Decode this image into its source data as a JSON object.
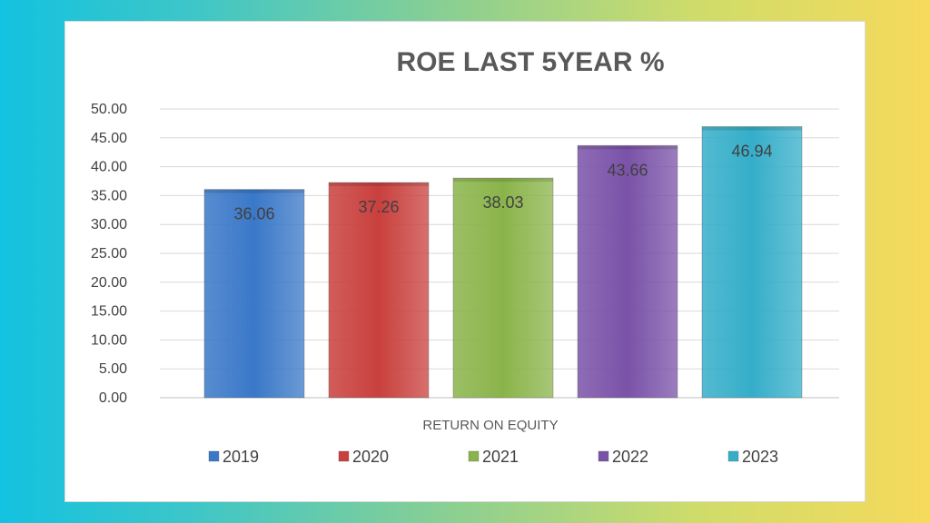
{
  "chart_data": {
    "type": "bar",
    "title": "ROE LAST 5YEAR %",
    "xlabel": "RETURN ON EQUITY",
    "ylabel": "",
    "ylim": [
      0,
      50
    ],
    "ytick_step": 5,
    "ytick_decimals": 2,
    "grid": true,
    "legend": "bottom",
    "categories": [
      "RETURN ON EQUITY"
    ],
    "series": [
      {
        "name": "2019",
        "values": [
          36.06
        ],
        "color": "#3a78c8"
      },
      {
        "name": "2020",
        "values": [
          37.26
        ],
        "color": "#c9403d"
      },
      {
        "name": "2021",
        "values": [
          38.03
        ],
        "color": "#8ab44a"
      },
      {
        "name": "2022",
        "values": [
          43.66
        ],
        "color": "#7a52a8"
      },
      {
        "name": "2023",
        "values": [
          46.94
        ],
        "color": "#35aec9"
      }
    ]
  }
}
